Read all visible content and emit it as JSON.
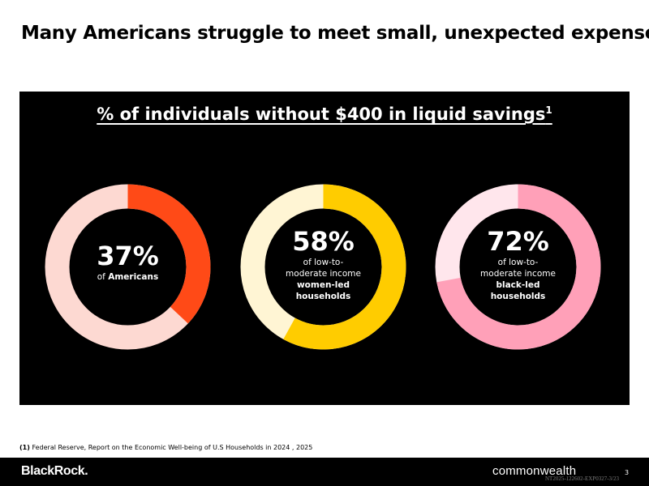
{
  "headline": "Many Americans struggle to meet small, unexpected expenses",
  "panel": {
    "title": "% of individuals without $400 in liquid savings",
    "title_sup": "1"
  },
  "stats": [
    {
      "percent": 37,
      "label": "37%",
      "lines": [
        "of Americans"
      ],
      "bold_lines": [
        0
      ],
      "color_fill": "#ff4a17",
      "color_track": "#fdd9d2"
    },
    {
      "percent": 58,
      "label": "58%",
      "lines": [
        "of low-to-",
        "moderate income",
        "women-led",
        "households"
      ],
      "bold_lines": [
        2,
        3
      ],
      "color_fill": "#ffcc00",
      "color_track": "#fff5d4"
    },
    {
      "percent": 72,
      "label": "72%",
      "lines": [
        "of low-to-",
        "moderate income",
        "black-led",
        "households"
      ],
      "bold_lines": [
        2,
        3
      ],
      "color_fill": "#ffa0b8",
      "color_track": "#ffe6ec"
    }
  ],
  "footnote": {
    "marker": "(1)",
    "text": "Federal Reserve, Report on the Economic Well-being of U.S Households in 2024 , 2025"
  },
  "footer": {
    "brand_left": "BlackRock.",
    "brand_right": "commonwealth",
    "code": "NT2025-122602-EXP0327-3/23",
    "page": "3"
  }
}
